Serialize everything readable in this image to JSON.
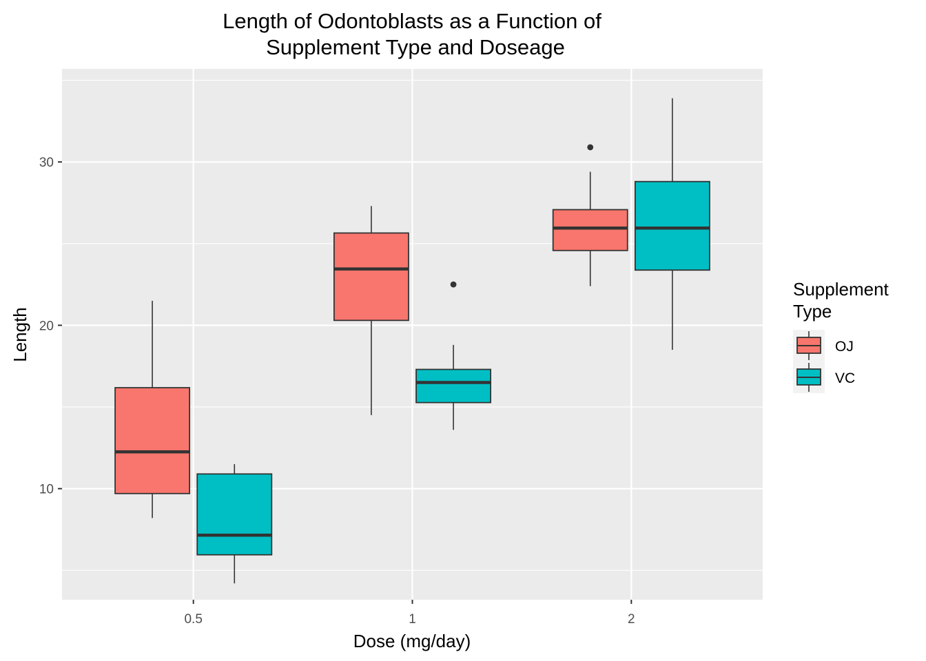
{
  "chart_data": {
    "type": "boxplot",
    "title": [
      "Length of Odontoblasts as a Function of",
      "Supplement Type and Doseage"
    ],
    "xlabel": "Dose (mg/day)",
    "ylabel": "Length",
    "categories": [
      "0.5",
      "1",
      "2"
    ],
    "ylim": [
      3.2,
      35.7
    ],
    "yticks": [
      10,
      20,
      30
    ],
    "grid": true,
    "legend": {
      "title": [
        "Supplement",
        "Type"
      ],
      "placement": "right",
      "entries": [
        {
          "name": "OJ",
          "color": "#F8766D"
        },
        {
          "name": "VC",
          "color": "#00BFC4"
        }
      ]
    },
    "series": [
      {
        "name": "OJ",
        "color": "#F8766D",
        "boxes": [
          {
            "dose": "0.5",
            "min": 8.2,
            "q1": 9.7,
            "median": 12.25,
            "q3": 16.18,
            "max": 21.5,
            "outliers": []
          },
          {
            "dose": "1",
            "min": 14.5,
            "q1": 20.3,
            "median": 23.45,
            "q3": 25.65,
            "max": 27.3,
            "outliers": []
          },
          {
            "dose": "2",
            "min": 22.4,
            "q1": 24.58,
            "median": 25.95,
            "q3": 27.08,
            "max": 29.4,
            "outliers": [
              30.9
            ]
          }
        ]
      },
      {
        "name": "VC",
        "color": "#00BFC4",
        "boxes": [
          {
            "dose": "0.5",
            "min": 4.2,
            "q1": 5.95,
            "median": 7.15,
            "q3": 10.9,
            "max": 11.5,
            "outliers": []
          },
          {
            "dose": "1",
            "min": 13.6,
            "q1": 15.27,
            "median": 16.5,
            "q3": 17.3,
            "max": 18.8,
            "outliers": [
              22.5
            ]
          },
          {
            "dose": "2",
            "min": 18.5,
            "q1": 23.38,
            "median": 25.95,
            "q3": 28.8,
            "max": 33.9,
            "outliers": []
          }
        ]
      }
    ]
  }
}
